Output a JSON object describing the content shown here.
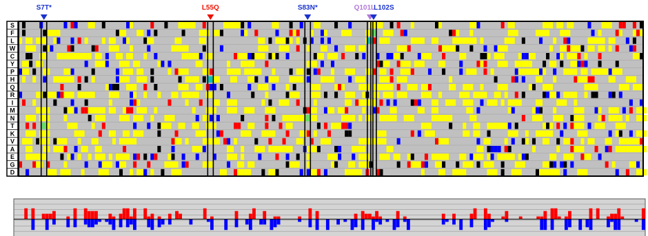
{
  "colors": {
    "neutral": "#c0c0c0",
    "beneficial": "#ffff00",
    "deleterious_strong": "#000000",
    "deleterious": "#ff0000",
    "favorable": "#0000ff",
    "wild_type": "#66dd66",
    "wild_type_alt": "#00c0c0",
    "profile_bg": "#d4d4d4",
    "profile_up": "#ff0000",
    "profile_down": "#0000ff",
    "marker_blue": "#1a33cc",
    "marker_red": "#ee1100",
    "marker_violet": "#b27ad8"
  },
  "amino_acids": [
    "S",
    "F",
    "L",
    "W",
    "C",
    "Y",
    "P",
    "H",
    "Q",
    "R",
    "I",
    "M",
    "N",
    "T",
    "K",
    "V",
    "A",
    "E",
    "G",
    "D"
  ],
  "num_positions": 180,
  "mutation_markers": [
    {
      "label": "S7T*",
      "position": 7,
      "color": "#1a33cc"
    },
    {
      "label": "L55Q",
      "position": 55,
      "color": "#ee1100"
    },
    {
      "label": "S83N*",
      "position": 83,
      "color": "#1a33cc"
    },
    {
      "label": "Q101L",
      "position": 101,
      "color": "#b27ad8"
    },
    {
      "label": "L102S",
      "position": 102,
      "color": "#1a33cc"
    }
  ],
  "highlighted_columns": [
    7,
    55,
    83,
    101,
    102
  ]
}
